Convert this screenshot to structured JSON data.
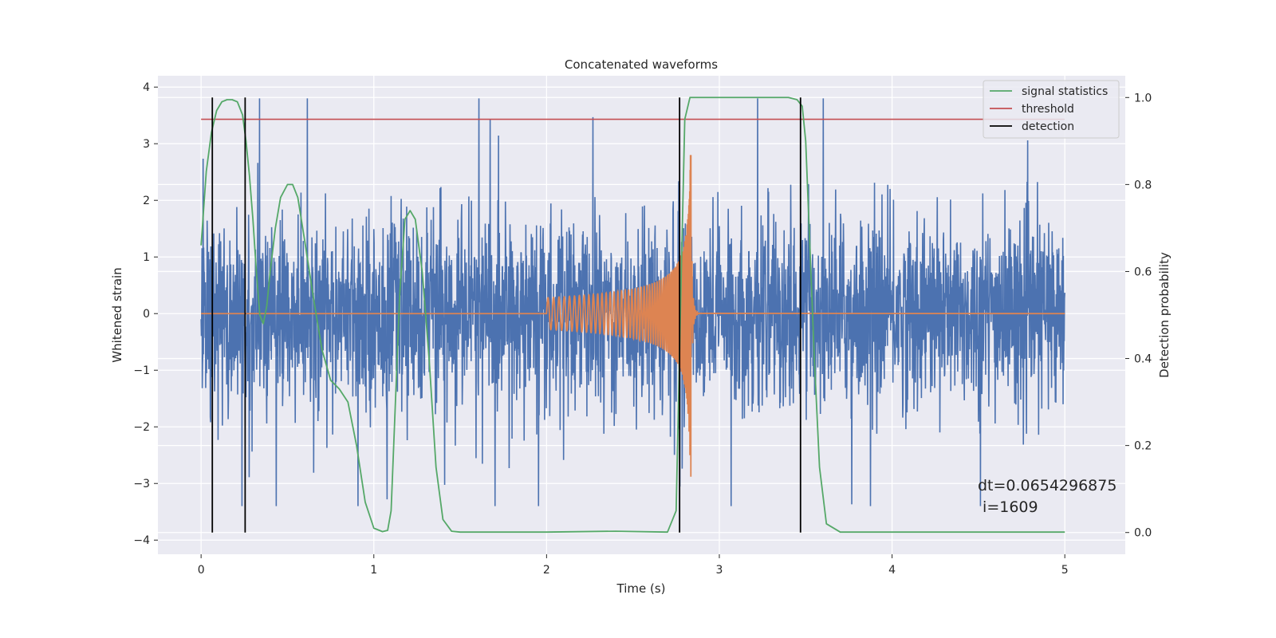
{
  "chart_data": {
    "type": "line",
    "title": "Concatenated waveforms",
    "xlabel": "Time (s)",
    "ylabel_left": "Whitened strain",
    "ylabel_right": "Detection probability",
    "xlim": [
      -0.25,
      5.35
    ],
    "ylim_left": [
      -4.25,
      4.2
    ],
    "ylim_right": [
      -0.05,
      1.05
    ],
    "xticks": [
      0,
      1,
      2,
      3,
      4,
      5
    ],
    "yticks_left": [
      -4,
      -3,
      -2,
      -1,
      0,
      1,
      2,
      3,
      4
    ],
    "yticks_right": [
      0.0,
      0.2,
      0.4,
      0.6,
      0.8,
      1.0
    ],
    "grid": true,
    "legend_position": "top-right",
    "legend": [
      {
        "label": "signal statistics",
        "color": "#55a868"
      },
      {
        "label": "threshold",
        "color": "#c44e52"
      },
      {
        "label": "detection",
        "color": "#000000"
      }
    ],
    "series": [
      {
        "kind": "noise",
        "axis": "left",
        "color": "#4c72b0",
        "x_range": [
          0,
          5
        ],
        "amplitude_typical": 0.8,
        "peak_max": 3.8,
        "peak_min": -3.4
      },
      {
        "kind": "chirp",
        "axis": "left",
        "color": "#dd8452",
        "start": 2.0,
        "end": 2.84,
        "peak_positive": 2.8,
        "peak_negative": -3.2
      },
      {
        "name": "signal statistics",
        "axis": "right",
        "color": "#55a868",
        "x": [
          0.0,
          0.03,
          0.06,
          0.09,
          0.12,
          0.15,
          0.18,
          0.21,
          0.24,
          0.26,
          0.28,
          0.3,
          0.32,
          0.34,
          0.36,
          0.38,
          0.4,
          0.43,
          0.46,
          0.5,
          0.53,
          0.56,
          0.6,
          0.65,
          0.7,
          0.75,
          0.8,
          0.85,
          0.9,
          0.95,
          1.0,
          1.05,
          1.08,
          1.1,
          1.12,
          1.15,
          1.18,
          1.21,
          1.24,
          1.28,
          1.32,
          1.36,
          1.4,
          1.45,
          1.5,
          2.0,
          2.4,
          2.7,
          2.75,
          2.78,
          2.8,
          2.83,
          3.0,
          3.4,
          3.45,
          3.48,
          3.5,
          3.52,
          3.55,
          3.58,
          3.62,
          3.7,
          5.0
        ],
        "y": [
          0.66,
          0.83,
          0.92,
          0.97,
          0.99,
          0.995,
          0.995,
          0.99,
          0.96,
          0.9,
          0.82,
          0.72,
          0.6,
          0.5,
          0.48,
          0.52,
          0.6,
          0.7,
          0.77,
          0.8,
          0.8,
          0.77,
          0.67,
          0.54,
          0.42,
          0.35,
          0.33,
          0.3,
          0.2,
          0.07,
          0.01,
          0.002,
          0.005,
          0.05,
          0.25,
          0.55,
          0.72,
          0.74,
          0.72,
          0.6,
          0.4,
          0.15,
          0.03,
          0.003,
          0.001,
          0.001,
          0.003,
          0.001,
          0.05,
          0.6,
          0.95,
          1.0,
          1.0,
          1.0,
          0.995,
          0.98,
          0.9,
          0.7,
          0.4,
          0.15,
          0.02,
          0.001,
          0.001
        ]
      },
      {
        "name": "threshold",
        "axis": "right",
        "color": "#c44e52",
        "value": 0.95,
        "x_range": [
          0,
          5
        ]
      },
      {
        "name": "detection",
        "axis": "right",
        "color": "#000000",
        "x": [
          0.065,
          0.255,
          2.77,
          3.47
        ],
        "y_range": [
          0,
          1.0
        ]
      }
    ],
    "annotation": {
      "lines": [
        "dt=0.0654296875",
        " i=1609"
      ]
    }
  }
}
